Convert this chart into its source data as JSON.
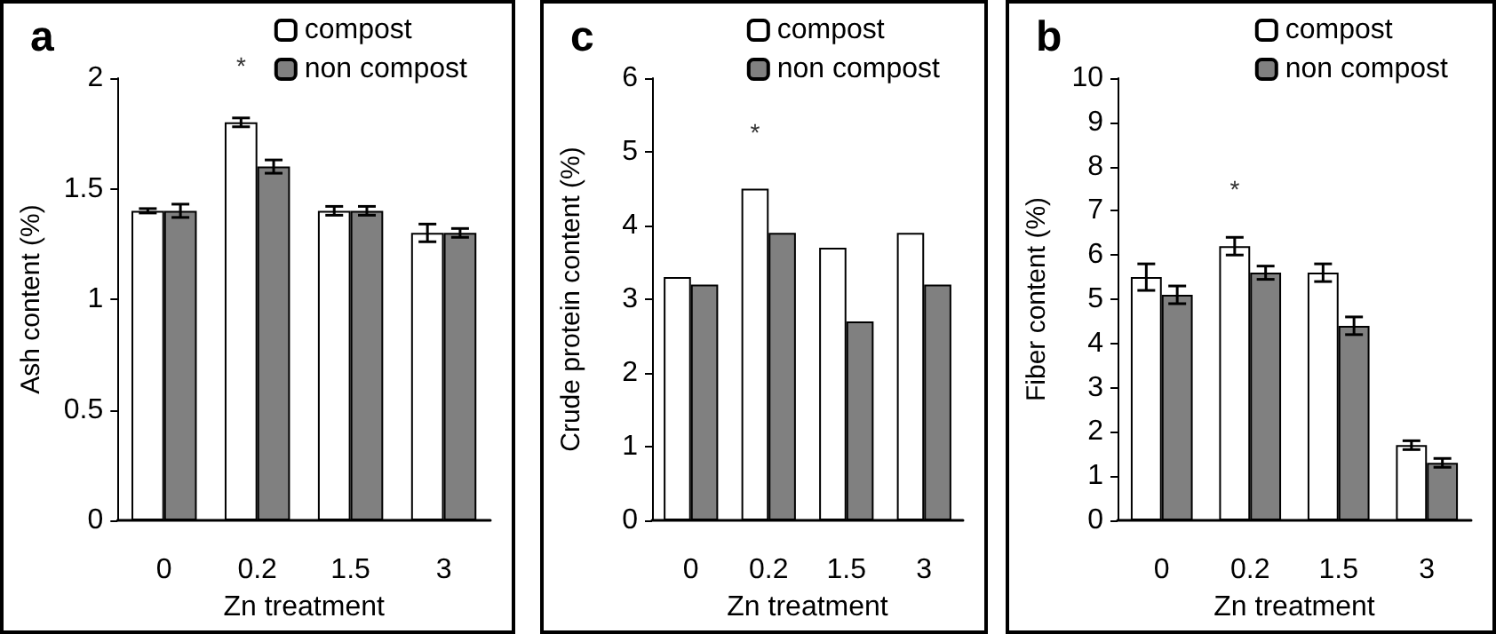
{
  "chart_data": [
    {
      "type": "bar",
      "title": "a",
      "xlabel": "Zn treatment",
      "ylabel": "Ash content (%)",
      "categories": [
        "0",
        "0.2",
        "1.5",
        "3"
      ],
      "series": [
        {
          "name": "compost",
          "color": "#ffffff",
          "values": [
            1.4,
            1.8,
            1.4,
            1.3
          ],
          "errors": [
            0.01,
            0.02,
            0.02,
            0.04
          ]
        },
        {
          "name": "non compost",
          "color": "#808080",
          "values": [
            1.4,
            1.6,
            1.4,
            1.3
          ],
          "errors": [
            0.03,
            0.03,
            0.02,
            0.02
          ]
        }
      ],
      "ylim": [
        0,
        2
      ],
      "yticks": [
        0,
        0.5,
        1,
        1.5,
        2
      ],
      "grid": false,
      "legend": "top right",
      "annotations": [
        "*"
      ]
    },
    {
      "type": "bar",
      "title": "c",
      "xlabel": "Zn treatment",
      "ylabel": "Crude protein content (%)",
      "categories": [
        "0",
        "0.2",
        "1.5",
        "3"
      ],
      "series": [
        {
          "name": "compost",
          "color": "#ffffff",
          "values": [
            3.3,
            4.5,
            3.7,
            3.9
          ]
        },
        {
          "name": "non compost",
          "color": "#808080",
          "values": [
            3.2,
            3.9,
            2.7,
            3.2
          ]
        }
      ],
      "ylim": [
        0,
        6
      ],
      "yticks": [
        0,
        1,
        2,
        3,
        4,
        5,
        6
      ],
      "grid": false,
      "legend": "top right",
      "annotations": [
        "*"
      ]
    },
    {
      "type": "bar",
      "title": "b",
      "xlabel": "Zn treatment",
      "ylabel": "Fiber content (%)",
      "categories": [
        "0",
        "0.2",
        "1.5",
        "3"
      ],
      "series": [
        {
          "name": "compost",
          "color": "#ffffff",
          "values": [
            5.5,
            6.2,
            5.6,
            1.7
          ],
          "errors": [
            0.3,
            0.2,
            0.2,
            0.1
          ]
        },
        {
          "name": "non compost",
          "color": "#808080",
          "values": [
            5.1,
            5.6,
            4.4,
            1.3
          ],
          "errors": [
            0.2,
            0.15,
            0.2,
            0.1
          ]
        }
      ],
      "ylim": [
        0,
        10
      ],
      "yticks": [
        0,
        1,
        2,
        3,
        4,
        5,
        6,
        7,
        8,
        9,
        10
      ],
      "grid": false,
      "legend": "top right",
      "annotations": [
        "*"
      ]
    }
  ]
}
